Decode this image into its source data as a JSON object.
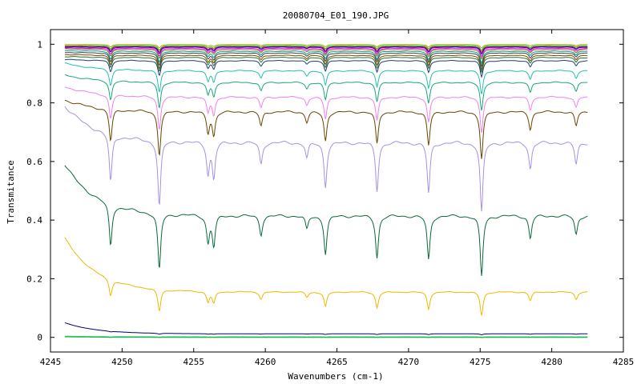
{
  "chart_data": {
    "type": "line",
    "title": "20080704_E01_190.JPG",
    "xlabel": "Wavenumbers (cm-1)",
    "ylabel": "Transmitance",
    "xlim": [
      4245,
      4285
    ],
    "ylim": [
      -0.05,
      1.05
    ],
    "xticks": [
      4245,
      4250,
      4255,
      4260,
      4265,
      4270,
      4275,
      4280,
      4285
    ],
    "xtick_labels": [
      "4245",
      "4250",
      "4255",
      "4260",
      "4265",
      "4270",
      "4275",
      "4280",
      "4285"
    ],
    "yticks": [
      0,
      0.2,
      0.4,
      0.6,
      0.8,
      1
    ],
    "ytick_labels": [
      "0",
      "0.2",
      "0.4",
      "0.6",
      "0.8",
      "1"
    ],
    "grid": false,
    "legend": "none",
    "x_range": [
      4246.0,
      4282.5
    ],
    "absorption_lines": [
      {
        "x": 4249.2,
        "depth": 0.55
      },
      {
        "x": 4252.6,
        "depth": 0.75
      },
      {
        "x": 4256.0,
        "depth": 0.35
      },
      {
        "x": 4256.4,
        "depth": 0.4
      },
      {
        "x": 4259.7,
        "depth": 0.25
      },
      {
        "x": 4262.9,
        "depth": 0.18
      },
      {
        "x": 4264.2,
        "depth": 0.5
      },
      {
        "x": 4267.8,
        "depth": 0.55
      },
      {
        "x": 4271.4,
        "depth": 0.58
      },
      {
        "x": 4275.1,
        "depth": 0.8
      },
      {
        "x": 4278.5,
        "depth": 0.3
      },
      {
        "x": 4281.7,
        "depth": 0.25
      }
    ],
    "series": [
      {
        "color": "#b7a800",
        "base": 0.999,
        "start": 0.999,
        "strength": 0.015
      },
      {
        "color": "#00c000",
        "base": 0.995,
        "start": 0.995,
        "strength": 0.02
      },
      {
        "color": "#ff0000",
        "base": 0.992,
        "start": 0.993,
        "strength": 0.025
      },
      {
        "color": "#0000ff",
        "base": 0.99,
        "start": 0.99,
        "strength": 0.03
      },
      {
        "color": "#ff00ff",
        "base": 0.986,
        "start": 0.987,
        "strength": 0.035
      },
      {
        "color": "#808000",
        "base": 0.982,
        "start": 0.984,
        "strength": 0.04
      },
      {
        "color": "#00a0a0",
        "base": 0.976,
        "start": 0.978,
        "strength": 0.05
      },
      {
        "color": "#404040",
        "base": 0.97,
        "start": 0.972,
        "strength": 0.055
      },
      {
        "color": "#7a4a00",
        "base": 0.962,
        "start": 0.965,
        "strength": 0.06
      },
      {
        "color": "#2d6e2d",
        "base": 0.955,
        "start": 0.958,
        "strength": 0.065
      },
      {
        "color": "#1c3f7a",
        "base": 0.944,
        "start": 0.948,
        "strength": 0.07
      },
      {
        "color": "#20c0b0",
        "base": 0.91,
        "start": 0.935,
        "strength": 0.1
      },
      {
        "color": "#18a878",
        "base": 0.87,
        "start": 0.895,
        "strength": 0.12
      },
      {
        "color": "#f080f0",
        "base": 0.82,
        "start": 0.855,
        "strength": 0.15
      },
      {
        "color": "#6b4500",
        "base": 0.77,
        "start": 0.81,
        "strength": 0.2
      },
      {
        "color": "#a890e8",
        "base": 0.665,
        "start": 0.79,
        "strength": 0.3
      },
      {
        "color": "#0a6a3a",
        "base": 0.415,
        "start": 0.59,
        "strength": 0.26
      },
      {
        "color": "#f0b800",
        "base": 0.155,
        "start": 0.34,
        "strength": 0.1
      },
      {
        "color": "#000070",
        "base": 0.012,
        "start": 0.05,
        "strength": 0.004
      },
      {
        "color": "#40c0c0",
        "base": 0.002,
        "start": 0.004,
        "strength": 0.002
      },
      {
        "color": "#00c000",
        "base": 0.0,
        "start": 0.002,
        "strength": 0.001
      }
    ]
  }
}
